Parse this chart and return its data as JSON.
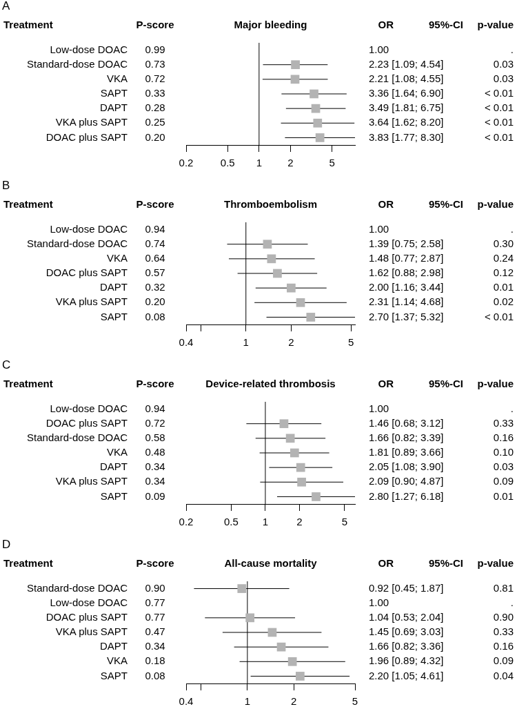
{
  "chart_data": [
    {
      "type": "scatter",
      "orientation": "horizontal",
      "title": "Major bleeding",
      "ylabel": "Treatment",
      "log": "x",
      "marker": "square",
      "color": "#b3b3b3",
      "categories": [
        "Low-dose DOAC",
        "Standard-dose DOAC",
        "VKA",
        "SAPT",
        "DAPT",
        "VKA plus SAPT",
        "DOAC plus SAPT"
      ],
      "values": [
        null,
        2.23,
        2.21,
        3.36,
        3.49,
        3.64,
        3.83
      ],
      "errors": [
        null,
        [
          1.09,
          4.54
        ],
        [
          1.08,
          4.55
        ],
        [
          1.64,
          6.9
        ],
        [
          1.81,
          6.75
        ],
        [
          1.62,
          8.2
        ],
        [
          1.77,
          8.3
        ]
      ],
      "value_labels": [
        "1.00",
        "2.23 [1.09; 4.54]",
        "2.21 [1.08; 4.55]",
        "3.36 [1.64; 6.90]",
        "3.49 [1.81; 6.75]",
        "3.64 [1.62; 8.20]",
        "3.83 [1.77; 8.30]"
      ],
      "y2_categories": [
        ".",
        "0.03",
        "0.03",
        "< 0.01",
        "< 0.01",
        "< 0.01",
        "< 0.01"
      ],
      "xlim": [
        0.2,
        8.3
      ],
      "xticks": [
        0.2,
        0.5,
        1,
        2,
        5
      ],
      "ref_lines": [
        {
          "axis": "x",
          "value": 1
        }
      ],
      "annotations": [
        "A",
        "P-score",
        "OR",
        "95%-CI",
        "p-value",
        "0.99",
        "0.73",
        "0.72",
        "0.33",
        "0.28",
        "0.25",
        "0.20"
      ]
    },
    {
      "type": "scatter",
      "orientation": "horizontal",
      "title": "Thromboembolism",
      "ylabel": "Treatment",
      "log": "x",
      "marker": "square",
      "color": "#b3b3b3",
      "categories": [
        "Low-dose DOAC",
        "Standard-dose DOAC",
        "VKA",
        "DOAC plus SAPT",
        "DAPT",
        "VKA plus SAPT",
        "SAPT"
      ],
      "values": [
        null,
        1.39,
        1.48,
        1.62,
        2.0,
        2.31,
        2.7
      ],
      "errors": [
        null,
        [
          0.75,
          2.58
        ],
        [
          0.77,
          2.87
        ],
        [
          0.88,
          2.98
        ],
        [
          1.16,
          3.44
        ],
        [
          1.14,
          4.68
        ],
        [
          1.37,
          5.32
        ]
      ],
      "value_labels": [
        "1.00",
        "1.39 [0.75; 2.58]",
        "1.48 [0.77; 2.87]",
        "1.62 [0.88; 2.98]",
        "2.00 [1.16; 3.44]",
        "2.31 [1.14; 4.68]",
        "2.70 [1.37; 5.32]"
      ],
      "y2_categories": [
        ".",
        "0.30",
        "0.24",
        "0.12",
        "0.01",
        "0.02",
        "< 0.01"
      ],
      "xlim": [
        0.4,
        5.32
      ],
      "xticks": [
        0.4,
        {
          "value": 0.5,
          "label": null
        },
        1,
        2,
        5
      ],
      "ref_lines": [
        {
          "axis": "x",
          "value": 1
        }
      ],
      "annotations": [
        "B",
        "P-score",
        "OR",
        "95%-CI",
        "p-value",
        "0.94",
        "0.74",
        "0.64",
        "0.57",
        "0.32",
        "0.20",
        "0.08"
      ]
    },
    {
      "type": "scatter",
      "orientation": "horizontal",
      "title": "Device-related thrombosis",
      "ylabel": "Treatment",
      "log": "x",
      "marker": "square",
      "color": "#b3b3b3",
      "categories": [
        "Low-dose DOAC",
        "DOAC plus SAPT",
        "Standard-dose DOAC",
        "VKA",
        "DAPT",
        "VKA plus SAPT",
        "SAPT"
      ],
      "values": [
        null,
        1.46,
        1.66,
        1.81,
        2.05,
        2.09,
        2.8
      ],
      "errors": [
        null,
        [
          0.68,
          3.12
        ],
        [
          0.82,
          3.39
        ],
        [
          0.89,
          3.66
        ],
        [
          1.08,
          3.9
        ],
        [
          0.9,
          4.87
        ],
        [
          1.27,
          6.18
        ]
      ],
      "value_labels": [
        "1.00",
        "1.46 [0.68; 3.12]",
        "1.66 [0.82; 3.39]",
        "1.81 [0.89; 3.66]",
        "2.05 [1.08; 3.90]",
        "2.09 [0.90; 4.87]",
        "2.80 [1.27; 6.18]"
      ],
      "y2_categories": [
        ".",
        "0.33",
        "0.16",
        "0.10",
        "0.03",
        "0.09",
        "0.01"
      ],
      "xlim": [
        0.2,
        6.18
      ],
      "xticks": [
        0.2,
        0.5,
        1,
        2,
        5
      ],
      "ref_lines": [
        {
          "axis": "x",
          "value": 1
        }
      ],
      "annotations": [
        "C",
        "P-score",
        "OR",
        "95%-CI",
        "p-value",
        "0.94",
        "0.72",
        "0.58",
        "0.48",
        "0.34",
        "0.34",
        "0.09"
      ]
    },
    {
      "type": "scatter",
      "orientation": "horizontal",
      "title": "All-cause mortality",
      "ylabel": "Treatment",
      "log": "x",
      "marker": "square",
      "color": "#b3b3b3",
      "categories": [
        "Standard-dose DOAC",
        "Low-dose DOAC",
        "DOAC plus SAPT",
        "VKA plus SAPT",
        "DAPT",
        "VKA",
        "SAPT"
      ],
      "values": [
        0.92,
        null,
        1.04,
        1.45,
        1.66,
        1.96,
        2.2
      ],
      "errors": [
        [
          0.45,
          1.87
        ],
        null,
        [
          0.53,
          2.04
        ],
        [
          0.69,
          3.03
        ],
        [
          0.82,
          3.36
        ],
        [
          0.89,
          4.32
        ],
        [
          1.05,
          4.61
        ]
      ],
      "value_labels": [
        "0.92 [0.45; 1.87]",
        "1.00",
        "1.04 [0.53; 2.04]",
        "1.45 [0.69; 3.03]",
        "1.66 [0.82; 3.36]",
        "1.96 [0.89; 4.32]",
        "2.20 [1.05; 4.61]"
      ],
      "y2_categories": [
        "0.81",
        ".",
        "0.90",
        "0.33",
        "0.16",
        "0.09",
        "0.04"
      ],
      "xlim": [
        0.4,
        5
      ],
      "xticks": [
        0.4,
        {
          "value": 0.5,
          "label": null
        },
        1,
        2,
        5
      ],
      "ref_lines": [
        {
          "axis": "x",
          "value": 1
        }
      ],
      "annotations": [
        "D",
        "P-score",
        "OR",
        "95%-CI",
        "p-value",
        "0.90",
        "0.77",
        "0.77",
        "0.47",
        "0.34",
        "0.18",
        "0.08"
      ]
    }
  ]
}
